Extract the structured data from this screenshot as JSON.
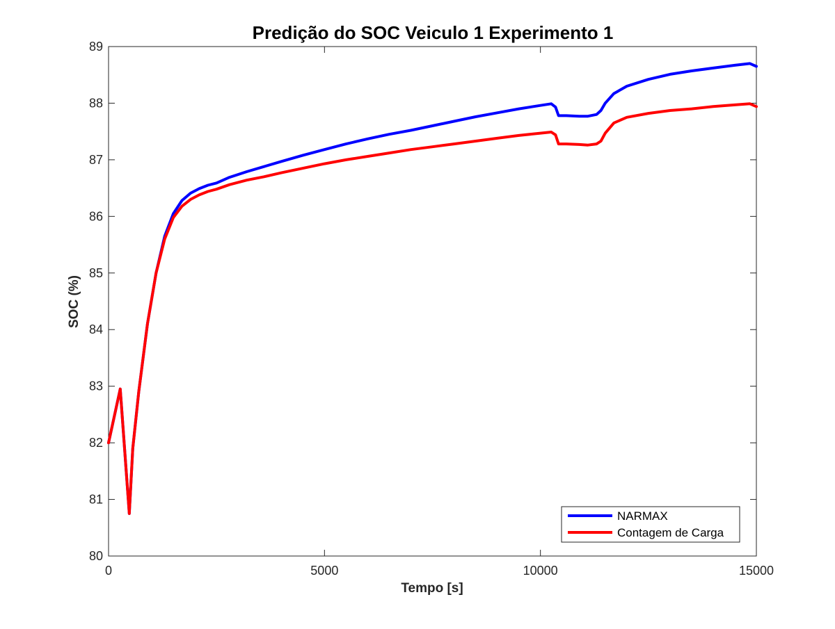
{
  "chart_data": {
    "type": "line",
    "title": "Predição do SOC Veiculo 1 Experimento 1",
    "xlabel": "Tempo [s]",
    "ylabel": "SOC (%)",
    "xlim": [
      0,
      15000
    ],
    "ylim": [
      80,
      89
    ],
    "xticks": [
      0,
      5000,
      10000,
      15000
    ],
    "xtick_labels": [
      "0",
      "5000",
      "10000",
      "15000"
    ],
    "yticks": [
      80,
      81,
      82,
      83,
      84,
      85,
      86,
      87,
      88,
      89
    ],
    "ytick_labels": [
      "80",
      "81",
      "82",
      "83",
      "84",
      "85",
      "86",
      "87",
      "88",
      "89"
    ],
    "grid": false,
    "legend_position": "bottom-right",
    "series": [
      {
        "name": "NARMAX",
        "color": "#0000ff",
        "x": [
          0,
          270,
          480,
          560,
          700,
          900,
          1100,
          1300,
          1500,
          1700,
          1900,
          2100,
          2300,
          2500,
          2800,
          3200,
          3600,
          4000,
          4500,
          5000,
          5500,
          6000,
          6500,
          7000,
          7500,
          8000,
          8500,
          9000,
          9500,
          10000,
          10250,
          10350,
          10420,
          10600,
          10900,
          11100,
          11300,
          11400,
          11500,
          11700,
          12000,
          12500,
          13000,
          13500,
          14000,
          14500,
          14850,
          15000
        ],
        "y": [
          82.0,
          82.95,
          80.75,
          81.9,
          82.9,
          84.1,
          85.0,
          85.65,
          86.05,
          86.28,
          86.41,
          86.49,
          86.55,
          86.59,
          86.69,
          86.79,
          86.88,
          86.97,
          87.08,
          87.18,
          87.28,
          87.37,
          87.45,
          87.52,
          87.6,
          87.68,
          87.76,
          87.83,
          87.9,
          87.96,
          87.99,
          87.93,
          87.78,
          87.78,
          87.77,
          87.77,
          87.8,
          87.87,
          88.0,
          88.17,
          88.3,
          88.42,
          88.51,
          88.57,
          88.62,
          88.67,
          88.7,
          88.65
        ]
      },
      {
        "name": "Contagem de Carga",
        "color": "#ff0000",
        "x": [
          0,
          270,
          480,
          560,
          700,
          900,
          1100,
          1300,
          1500,
          1700,
          1900,
          2100,
          2300,
          2500,
          2800,
          3200,
          3600,
          4000,
          4500,
          5000,
          5500,
          6000,
          6500,
          7000,
          7500,
          8000,
          8500,
          9000,
          9500,
          10000,
          10250,
          10350,
          10420,
          10600,
          10900,
          11100,
          11300,
          11400,
          11500,
          11700,
          12000,
          12500,
          13000,
          13500,
          14000,
          14500,
          14850,
          15000
        ],
        "y": [
          82.0,
          82.95,
          80.75,
          81.9,
          82.9,
          84.1,
          85.0,
          85.6,
          85.98,
          86.18,
          86.3,
          86.38,
          86.44,
          86.48,
          86.56,
          86.64,
          86.7,
          86.77,
          86.85,
          86.93,
          87.0,
          87.06,
          87.12,
          87.18,
          87.23,
          87.28,
          87.33,
          87.38,
          87.43,
          87.47,
          87.49,
          87.44,
          87.28,
          87.28,
          87.27,
          87.26,
          87.28,
          87.33,
          87.47,
          87.65,
          87.75,
          87.82,
          87.87,
          87.9,
          87.94,
          87.97,
          87.99,
          87.94
        ]
      }
    ]
  }
}
